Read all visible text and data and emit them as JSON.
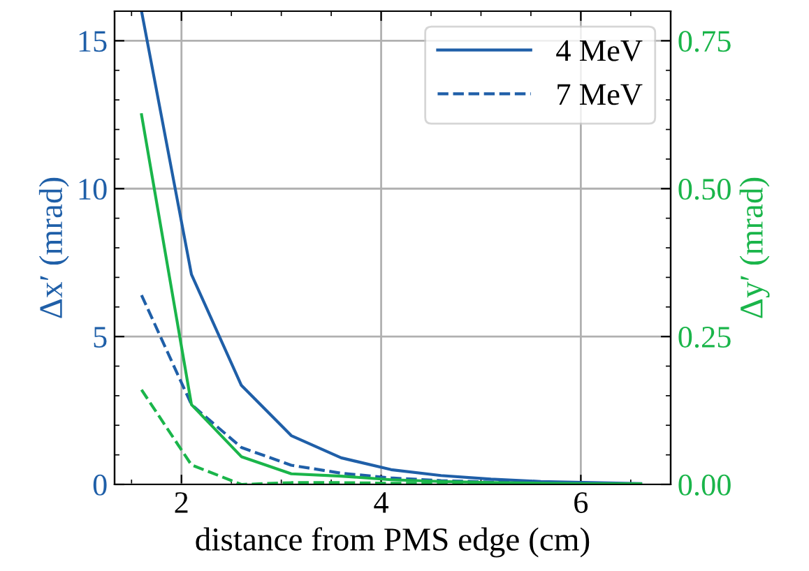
{
  "chart_data": {
    "type": "line",
    "xlabel": "distance from PMS edge (cm)",
    "ylabel": "Δx′ (mrad)",
    "y2label": "Δy′ (mrad)",
    "x": [
      1.6,
      2.1,
      2.6,
      3.1,
      3.6,
      4.1,
      4.6,
      5.1,
      5.6,
      6.1,
      6.6
    ],
    "series": [
      {
        "name": "4 MeV",
        "color": "#1f5fa8",
        "line_style": "solid",
        "values": [
          16.0,
          7.1,
          3.35,
          1.65,
          0.9,
          0.5,
          0.3,
          0.18,
          0.1,
          0.06,
          0.03
        ]
      },
      {
        "name": "7 MeV",
        "color": "#1f5fa8",
        "line_style": "dashed",
        "values": [
          6.4,
          2.7,
          1.25,
          0.65,
          0.38,
          0.22,
          0.13,
          0.08,
          0.05,
          0.03,
          0.02
        ]
      },
      {
        "color": "#1ab54a",
        "line_style": "solid",
        "axis": "y2",
        "values": [
          0.625,
          0.135,
          0.047,
          0.018,
          0.014,
          0.008,
          0.005,
          0.003,
          0.002,
          0.001,
          0.001
        ]
      },
      {
        "color": "#1ab54a",
        "line_style": "dashed",
        "axis": "y2",
        "values": [
          0.16,
          0.033,
          0.0,
          0.003,
          0.003,
          0.002,
          0.002,
          0.001,
          0.001,
          0.001,
          0.0
        ]
      }
    ],
    "xlim": [
      1.33,
      6.9
    ],
    "xticks": [
      2,
      4,
      6
    ],
    "ylim": [
      0,
      16
    ],
    "yticks": [
      0,
      5,
      10,
      15
    ],
    "y2lim": [
      0,
      0.8
    ],
    "y2ticks": [
      {
        "value": 0,
        "label": "0.00"
      },
      {
        "value": 0.25,
        "label": "0.25"
      },
      {
        "value": 0.5,
        "label": "0.50"
      },
      {
        "value": 0.75,
        "label": "0.75"
      }
    ],
    "grid": true,
    "legend": "top right",
    "marker": "none"
  }
}
